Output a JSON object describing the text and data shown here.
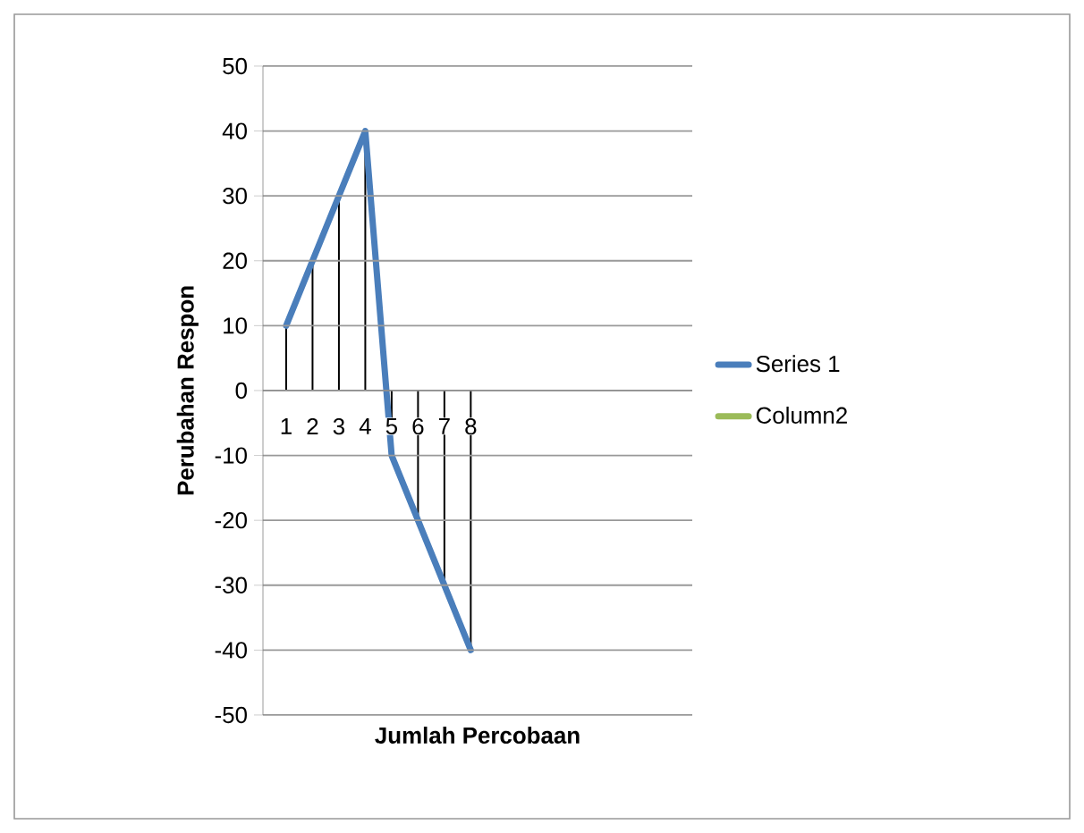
{
  "chart_data": {
    "type": "line",
    "xlabel": "Jumlah Percobaan",
    "ylabel": "Perubahan Respon",
    "categories": [
      "1",
      "2",
      "3",
      "4",
      "5",
      "6",
      "7",
      "8"
    ],
    "series": [
      {
        "name": "Series 1",
        "color": "#4a7ebb",
        "values": [
          10,
          20,
          30,
          40,
          -10,
          -20,
          -30,
          -40
        ],
        "errors": [
          [
            0,
            10
          ],
          [
            0,
            20
          ],
          [
            0,
            30
          ],
          [
            0,
            40
          ],
          [
            -10,
            0
          ],
          [
            -20,
            0
          ],
          [
            -30,
            0
          ],
          [
            -40,
            0
          ]
        ]
      },
      {
        "name": "Column2",
        "color": "#9bbb59",
        "values": [
          null,
          null,
          null,
          null,
          null,
          null,
          null,
          null
        ]
      }
    ],
    "ylim": [
      -50,
      50
    ],
    "yticks": [
      -50,
      -40,
      -30,
      -20,
      -10,
      0,
      10,
      20,
      30,
      40,
      50
    ],
    "grid": "y",
    "legend": "right"
  }
}
